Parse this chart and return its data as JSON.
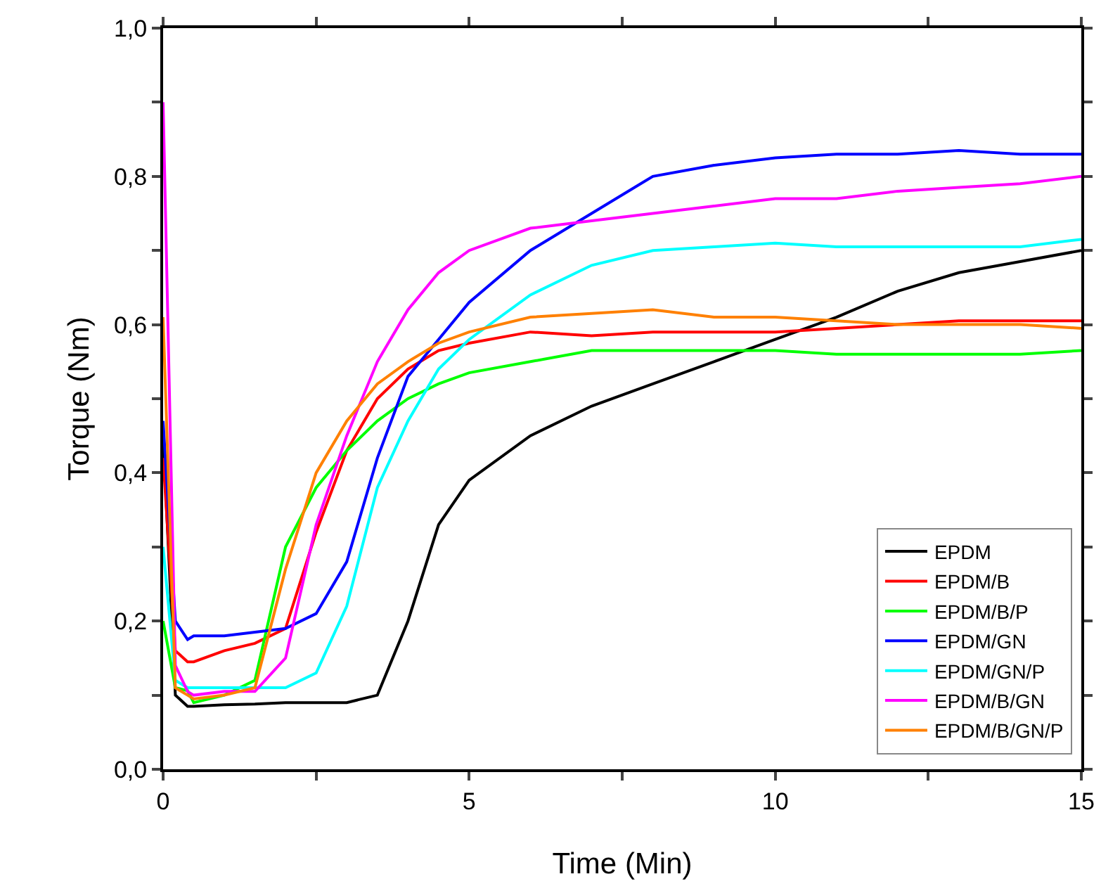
{
  "chart_data": {
    "type": "line",
    "xlabel": "Time (Min)",
    "ylabel": "Torque (Nm)",
    "x": [
      0,
      0.2,
      0.4,
      0.5,
      1,
      1.5,
      2,
      2.5,
      3,
      3.5,
      4,
      4.5,
      5,
      6,
      7,
      8,
      9,
      10,
      11,
      12,
      13,
      14,
      15
    ],
    "series": [
      {
        "name": "EPDM",
        "color": "#000000",
        "values": [
          0.45,
          0.1,
          0.085,
          0.085,
          0.087,
          0.088,
          0.09,
          0.09,
          0.09,
          0.1,
          0.2,
          0.33,
          0.39,
          0.45,
          0.49,
          0.52,
          0.55,
          0.58,
          0.61,
          0.645,
          0.67,
          0.685,
          0.7
        ]
      },
      {
        "name": "EPDM/B",
        "color": "#ff0000",
        "values": [
          0.42,
          0.16,
          0.145,
          0.145,
          0.16,
          0.17,
          0.19,
          0.32,
          0.43,
          0.5,
          0.54,
          0.565,
          0.575,
          0.59,
          0.585,
          0.59,
          0.59,
          0.59,
          0.595,
          0.6,
          0.605,
          0.605,
          0.605
        ]
      },
      {
        "name": "EPDM/B/P",
        "color": "#00ff00",
        "values": [
          0.2,
          0.11,
          0.106,
          0.09,
          0.1,
          0.12,
          0.3,
          0.38,
          0.43,
          0.47,
          0.5,
          0.52,
          0.535,
          0.55,
          0.565,
          0.565,
          0.565,
          0.565,
          0.56,
          0.56,
          0.56,
          0.56,
          0.565
        ]
      },
      {
        "name": "EPDM/GN",
        "color": "#0000ff",
        "values": [
          0.47,
          0.2,
          0.175,
          0.18,
          0.18,
          0.185,
          0.19,
          0.21,
          0.28,
          0.42,
          0.53,
          0.58,
          0.63,
          0.7,
          0.75,
          0.8,
          0.815,
          0.825,
          0.83,
          0.83,
          0.835,
          0.83,
          0.83
        ]
      },
      {
        "name": "EPDM/GN/P",
        "color": "#00ffff",
        "values": [
          0.3,
          0.12,
          0.11,
          0.11,
          0.11,
          0.11,
          0.11,
          0.13,
          0.22,
          0.38,
          0.47,
          0.54,
          0.58,
          0.64,
          0.68,
          0.7,
          0.705,
          0.71,
          0.705,
          0.705,
          0.705,
          0.705,
          0.715
        ]
      },
      {
        "name": "EPDM/B/GN",
        "color": "#ff00ff",
        "values": [
          0.9,
          0.14,
          0.105,
          0.1,
          0.105,
          0.105,
          0.15,
          0.33,
          0.45,
          0.55,
          0.62,
          0.67,
          0.7,
          0.73,
          0.74,
          0.75,
          0.76,
          0.77,
          0.77,
          0.78,
          0.785,
          0.79,
          0.8
        ]
      },
      {
        "name": "EPDM/B/GN/P",
        "color": "#ff8000",
        "values": [
          0.61,
          0.11,
          0.1,
          0.095,
          0.1,
          0.11,
          0.27,
          0.4,
          0.47,
          0.52,
          0.55,
          0.575,
          0.59,
          0.61,
          0.615,
          0.62,
          0.61,
          0.61,
          0.605,
          0.6,
          0.6,
          0.6,
          0.595
        ]
      }
    ],
    "xlim": [
      0,
      15
    ],
    "xticks": [
      0,
      {
        "value": 2.5,
        "label": null
      },
      5,
      {
        "value": 7.5,
        "label": null
      },
      10,
      {
        "value": 12.5,
        "label": null
      },
      15
    ],
    "ylim": [
      0,
      1
    ],
    "yticks": [
      {
        "value": 0,
        "label": "0,0"
      },
      {
        "value": 0.1,
        "label": null
      },
      {
        "value": 0.2,
        "label": "0,2"
      },
      {
        "value": 0.3,
        "label": null
      },
      {
        "value": 0.4,
        "label": "0,4"
      },
      {
        "value": 0.5,
        "label": null
      },
      {
        "value": 0.6,
        "label": "0,6"
      },
      {
        "value": 0.7,
        "label": null
      },
      {
        "value": 0.8,
        "label": "0,8"
      },
      {
        "value": 0.9,
        "label": null
      },
      {
        "value": 1,
        "label": "1,0"
      }
    ],
    "grid": false,
    "legend": "bottom right",
    "marker": "none",
    "line_style": "solid"
  }
}
